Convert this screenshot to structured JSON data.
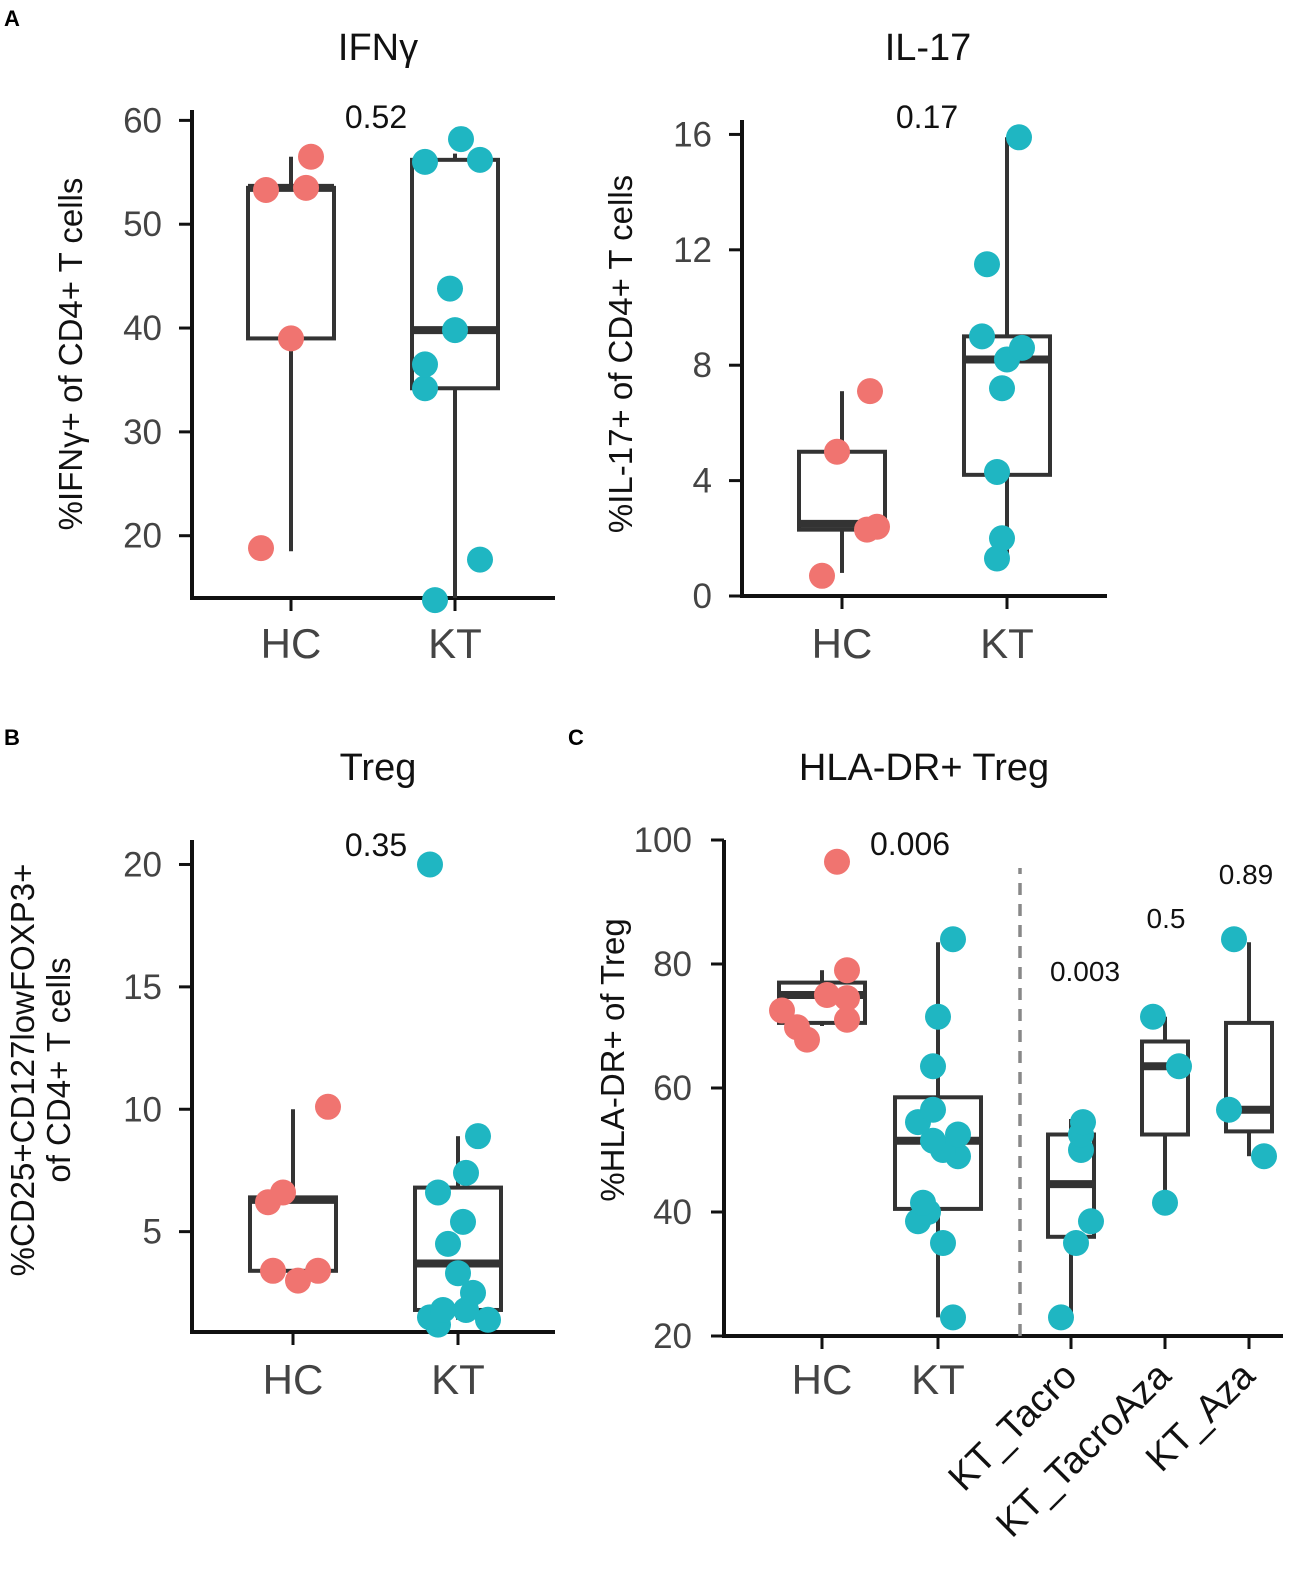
{
  "chart_data": [
    {
      "panel": "A",
      "type": "box",
      "title": "IFNγ",
      "ylabel": "%IFNγ+ of CD4+ T cells",
      "ylim": [
        14,
        61
      ],
      "yticks": [
        20,
        30,
        40,
        50,
        60
      ],
      "categories": [
        "HC",
        "KT"
      ],
      "pvalues": [
        {
          "text": "0.52"
        }
      ],
      "boxes": [
        {
          "category": "HC",
          "min": 18.5,
          "q1": 39,
          "median": 53.5,
          "q3": 53.5,
          "max": 56.5
        },
        {
          "category": "KT",
          "min": 14,
          "q1": 34.2,
          "median": 39.8,
          "q3": 56.2,
          "max": 56.8
        }
      ],
      "points": [
        {
          "category": "HC",
          "color": "#f07470",
          "values": [
            18.8,
            39,
            53.5,
            53.3,
            56.5
          ]
        },
        {
          "category": "KT",
          "color": "#1fb6c2",
          "values": [
            13.8,
            17.7,
            34.2,
            36.5,
            39.8,
            43.8,
            56,
            56.2,
            58.2
          ]
        }
      ]
    },
    {
      "panel": "A",
      "type": "box",
      "title": "IL-17",
      "ylabel": "%IL-17+ of CD4+ T cells",
      "ylim": [
        0,
        16.5
      ],
      "yticks": [
        0,
        4,
        8,
        12,
        16
      ],
      "categories": [
        "HC",
        "KT"
      ],
      "pvalues": [
        {
          "text": "0.17"
        }
      ],
      "boxes": [
        {
          "category": "HC",
          "min": 0.8,
          "q1": 2.3,
          "median": 2.5,
          "q3": 5.0,
          "max": 7.1
        },
        {
          "category": "KT",
          "min": 1.3,
          "q1": 4.2,
          "median": 8.2,
          "q3": 9.0,
          "max": 15.9
        }
      ],
      "points": [
        {
          "category": "HC",
          "color": "#f07470",
          "values": [
            0.7,
            2.3,
            2.4,
            5.0,
            7.1
          ]
        },
        {
          "category": "KT",
          "color": "#1fb6c2",
          "values": [
            1.3,
            2.0,
            4.3,
            7.2,
            8.2,
            8.6,
            9.0,
            11.5,
            15.9
          ]
        }
      ]
    },
    {
      "panel": "B",
      "type": "box",
      "title": "Treg",
      "ylabel": [
        "%CD25+CD127lowFOXP3+",
        "of CD4+ T cells"
      ],
      "ylim": [
        0.9,
        21
      ],
      "yticks": [
        5,
        10,
        15,
        20
      ],
      "categories": [
        "HC",
        "KT"
      ],
      "pvalues": [
        {
          "text": "0.35"
        }
      ],
      "boxes": [
        {
          "category": "HC",
          "min": 3.4,
          "q1": 3.4,
          "median": 6.3,
          "q3": 6.4,
          "max": 10.0
        },
        {
          "category": "KT",
          "min": 1.4,
          "q1": 1.8,
          "median": 3.7,
          "q3": 6.8,
          "max": 8.9
        }
      ],
      "points": [
        {
          "category": "HC",
          "color": "#f07470",
          "values": [
            3.0,
            3.4,
            3.4,
            6.2,
            6.6,
            10.1
          ]
        },
        {
          "category": "KT",
          "color": "#1fb6c2",
          "values": [
            1.2,
            1.4,
            1.5,
            1.8,
            1.8,
            2.5,
            3.3,
            4.5,
            5.4,
            6.6,
            7.4,
            8.9,
            20.0
          ]
        }
      ]
    },
    {
      "panel": "C",
      "type": "box",
      "title": "HLA-DR+ Treg",
      "ylabel": "%HLA-DR+ of Treg",
      "ylim": [
        20,
        100
      ],
      "yticks": [
        20,
        40,
        60,
        80,
        100
      ],
      "categories": [
        "HC",
        "KT",
        "KT_Tacro",
        "KT_TacroAza",
        "KT_Aza"
      ],
      "separator_after": "KT",
      "pvalues": [
        {
          "text": "0.006"
        },
        {
          "text": "0.003"
        },
        {
          "text": "0.5"
        },
        {
          "text": "0.89"
        }
      ],
      "boxes": [
        {
          "category": "HC",
          "min": 70.0,
          "q1": 70.5,
          "median": 75.0,
          "q3": 77.0,
          "max": 79.0
        },
        {
          "category": "KT",
          "min": 23.0,
          "q1": 40.5,
          "median": 51.5,
          "q3": 58.5,
          "max": 83.5
        },
        {
          "category": "KT_Tacro",
          "min": 23.0,
          "q1": 36.0,
          "median": 44.5,
          "q3": 52.5,
          "max": 55.0
        },
        {
          "category": "KT_TacroAza",
          "min": 41.5,
          "q1": 52.5,
          "median": 63.5,
          "q3": 67.5,
          "max": 71.5
        },
        {
          "category": "KT_Aza",
          "min": 49.0,
          "q1": 53.0,
          "median": 56.5,
          "q3": 70.5,
          "max": 83.5
        }
      ],
      "points": [
        {
          "category": "HC",
          "color": "#f07470",
          "values": [
            67.8,
            69.8,
            71.0,
            72.5,
            74.5,
            75.0,
            79.0,
            96.5
          ]
        },
        {
          "category": "KT",
          "color": "#1fb6c2",
          "values": [
            23.0,
            35.0,
            38.5,
            40.0,
            41.5,
            49.0,
            50.0,
            51.5,
            52.5,
            54.5,
            56.5,
            63.5,
            71.5,
            84.0
          ]
        },
        {
          "category": "KT_Tacro",
          "color": "#1fb6c2",
          "values": [
            23.0,
            35.0,
            38.5,
            50.0,
            52.5,
            54.5
          ]
        },
        {
          "category": "KT_TacroAza",
          "color": "#1fb6c2",
          "values": [
            41.5,
            63.5,
            71.5
          ]
        },
        {
          "category": "KT_Aza",
          "color": "#1fb6c2",
          "values": [
            49.0,
            56.5,
            84.0
          ]
        }
      ]
    }
  ],
  "panel_labels": [
    "A",
    "B",
    "C"
  ]
}
